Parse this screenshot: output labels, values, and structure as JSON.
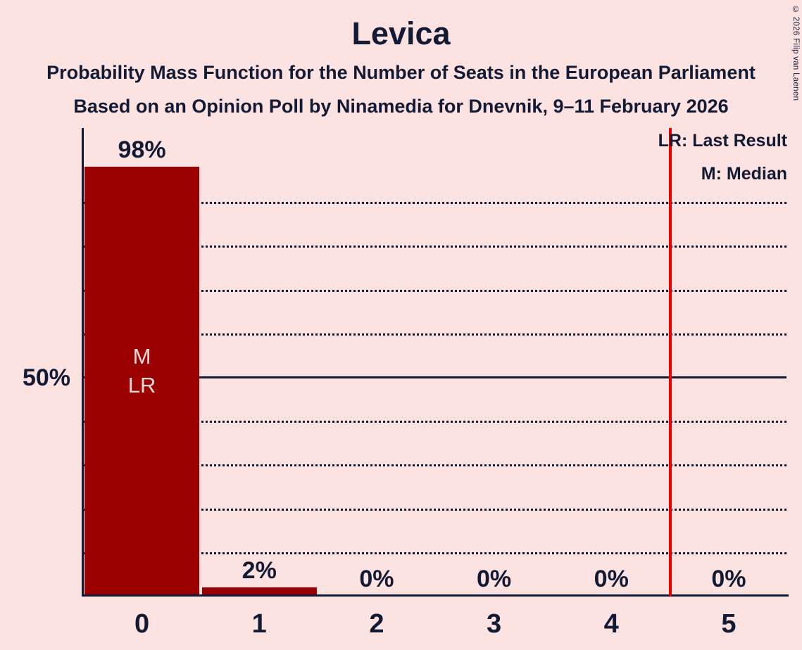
{
  "title": "Levica",
  "subtitle1": "Probability Mass Function for the Number of Seats in the European Parliament",
  "subtitle2": "Based on an Opinion Poll by Ninamedia for Dnevnik, 9–11 February 2026",
  "copyright": "© 2026 Filip van Laenen",
  "legend": {
    "lr": "LR: Last Result",
    "m": "M: Median"
  },
  "y_axis": {
    "label_50": "50%"
  },
  "chart_data": {
    "type": "bar",
    "categories": [
      "0",
      "1",
      "2",
      "3",
      "4",
      "5"
    ],
    "values": [
      98,
      2,
      0,
      0,
      0,
      0
    ],
    "value_labels": [
      "98%",
      "2%",
      "0%",
      "0%",
      "0%",
      "0%"
    ],
    "xlabel": "",
    "ylabel": "",
    "ylim": [
      0,
      100
    ],
    "y_gridlines_pct": [
      10,
      20,
      30,
      40,
      60,
      70,
      80,
      90
    ],
    "solid_gridline_pct": 50,
    "median_seat": 0,
    "last_result_seat": 0,
    "bar_annotations": [
      {
        "index": 0,
        "lines": [
          "M",
          "LR"
        ]
      }
    ],
    "threshold_line_seat_position": 4.5,
    "legend_position": "top-right",
    "colors": {
      "background": "#FDE2E2",
      "bar": "#9B0000",
      "bar_label_text": "#F8D7D7",
      "text": "#131A33",
      "threshold_line": "#EE0000"
    }
  }
}
